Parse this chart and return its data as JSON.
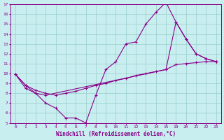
{
  "xlabel": "Windchill (Refroidissement éolien,°C)",
  "background_color": "#c8eef0",
  "line_color": "#880088",
  "grid_color": "#99cccc",
  "xlim": [
    -0.5,
    23.5
  ],
  "ylim": [
    5,
    17
  ],
  "xtick_positions": [
    0,
    1,
    2,
    3,
    4,
    5,
    6,
    7,
    8,
    9,
    10,
    11,
    12,
    13,
    14,
    15,
    19,
    20,
    21,
    22,
    23
  ],
  "xtick_labels": [
    "0",
    "1",
    "2",
    "3",
    "4",
    "5",
    "6",
    "7",
    "8",
    "9",
    "10",
    "11",
    "12",
    "13",
    "14",
    "15",
    "19",
    "20",
    "21",
    "22",
    "23"
  ],
  "ytick_positions": [
    5,
    6,
    7,
    8,
    9,
    10,
    11,
    12,
    13,
    14,
    15,
    16,
    17
  ],
  "ytick_labels": [
    "5",
    "6",
    "7",
    "8",
    "9",
    "10",
    "11",
    "12",
    "13",
    "14",
    "15",
    "16",
    "17"
  ],
  "line1_x": [
    0,
    1,
    2,
    3,
    4,
    5,
    6,
    7,
    8,
    9,
    10,
    11,
    12,
    13,
    14,
    15,
    19,
    20,
    21,
    22,
    23
  ],
  "line1_y": [
    9.9,
    8.5,
    8.0,
    7.0,
    6.5,
    5.5,
    5.5,
    5.0,
    7.8,
    10.4,
    11.2,
    13.0,
    13.2,
    15.0,
    16.2,
    17.2,
    15.2,
    13.5,
    12.0,
    11.5,
    11.2
  ],
  "line2_x": [
    0,
    1,
    2,
    3,
    4,
    5,
    6,
    7,
    8,
    9,
    10,
    11,
    12,
    13,
    14,
    15,
    19,
    20,
    21,
    22,
    23
  ],
  "line2_y": [
    9.9,
    8.8,
    8.3,
    8.0,
    7.8,
    8.0,
    8.2,
    8.5,
    8.8,
    9.0,
    9.3,
    9.5,
    9.8,
    10.0,
    10.2,
    10.4,
    10.9,
    11.0,
    11.1,
    11.2,
    11.2
  ],
  "line3_x": [
    0,
    1,
    2,
    3,
    15,
    19,
    20,
    21,
    22,
    23
  ],
  "line3_y": [
    9.9,
    8.8,
    8.0,
    7.8,
    10.4,
    15.2,
    13.5,
    12.0,
    11.5,
    11.2
  ]
}
